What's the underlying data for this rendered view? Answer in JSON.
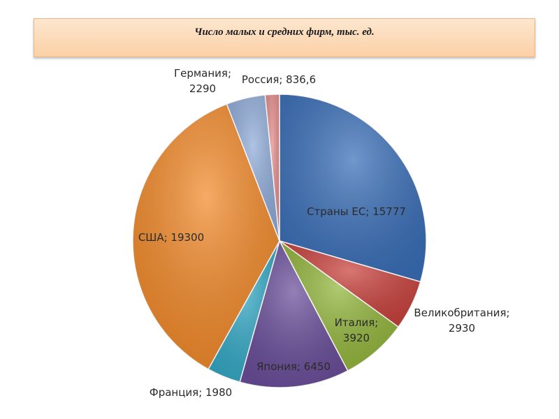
{
  "chart_data": {
    "type": "pie",
    "title": "Число малых и средних фирм, тыс. ед.",
    "slices": [
      {
        "name": "Страны ЕС",
        "value": 15777,
        "label_lines": [
          "Страны ЕС; 15777"
        ],
        "color": "#3a6fb8"
      },
      {
        "name": "Великобритания",
        "value": 2930,
        "label_lines": [
          "Великобритания;",
          "2930"
        ],
        "color": "#c8413c"
      },
      {
        "name": "Италия",
        "value": 3920,
        "label_lines": [
          "Италия;",
          "3920"
        ],
        "color": "#93b63c"
      },
      {
        "name": "Япония",
        "value": 6450,
        "label_lines": [
          "Япония; 6450"
        ],
        "color": "#6a4e9a"
      },
      {
        "name": "Франция",
        "value": 1980,
        "label_lines": [
          "Франция; 1980"
        ],
        "color": "#34a9c5"
      },
      {
        "name": "США",
        "value": 19300,
        "label_lines": [
          "США; 19300"
        ],
        "color": "#f28a2a"
      },
      {
        "name": "Германия",
        "value": 2290,
        "label_lines": [
          "Германия;",
          "2290"
        ],
        "color": "#90acd9"
      },
      {
        "name": "Россия",
        "value": 836.6,
        "label_lines": [
          "Россия; 836,6"
        ],
        "color": "#e48d8b"
      }
    ]
  }
}
